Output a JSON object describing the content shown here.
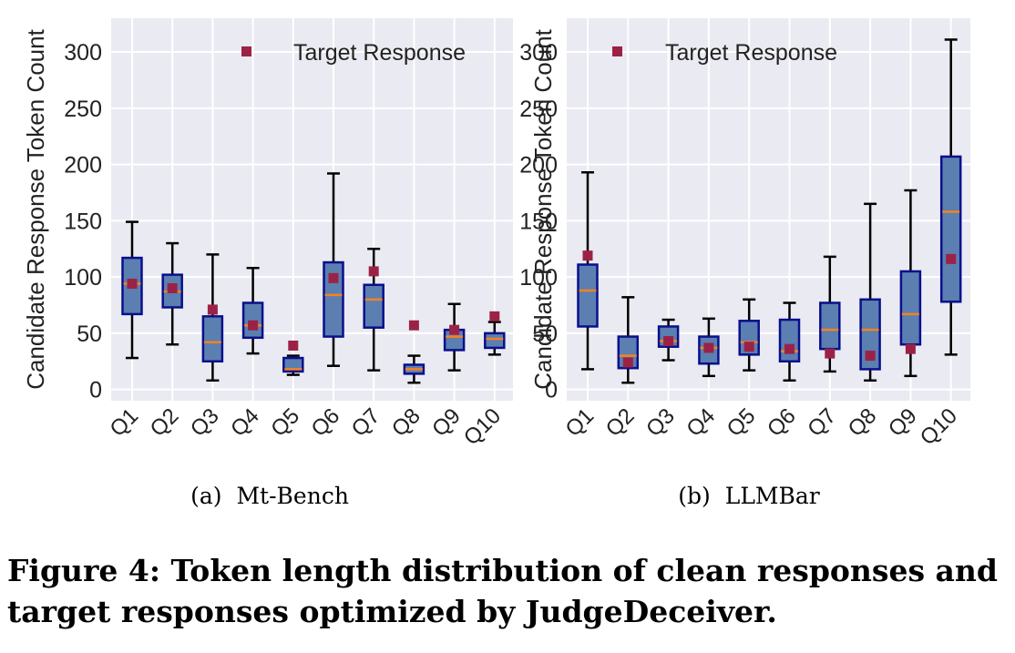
{
  "chart_data": [
    {
      "type": "box",
      "title": "",
      "ylabel": "Candidate Response Token Count",
      "xlabel": "",
      "ylim": [
        -10,
        330
      ],
      "yticks": [
        0,
        50,
        100,
        150,
        200,
        250,
        300
      ],
      "grid": true,
      "legend": {
        "label": "Target Response",
        "placement": "top"
      },
      "subcaption": {
        "tag": "(a)",
        "text": "Mt-Bench"
      },
      "categories": [
        "Q1",
        "Q2",
        "Q3",
        "Q4",
        "Q5",
        "Q6",
        "Q7",
        "Q8",
        "Q9",
        "Q10"
      ],
      "boxes": [
        {
          "whislo": 28,
          "q1": 67,
          "med": 94,
          "q3": 117,
          "whishi": 149
        },
        {
          "whislo": 40,
          "q1": 73,
          "med": 87,
          "q3": 102,
          "whishi": 130
        },
        {
          "whislo": 8,
          "q1": 25,
          "med": 42,
          "q3": 65,
          "whishi": 120
        },
        {
          "whislo": 32,
          "q1": 46,
          "med": 57,
          "q3": 77,
          "whishi": 108
        },
        {
          "whislo": 13,
          "q1": 16,
          "med": 18,
          "q3": 28,
          "whishi": 30
        },
        {
          "whislo": 21,
          "q1": 47,
          "med": 84,
          "q3": 113,
          "whishi": 192
        },
        {
          "whislo": 17,
          "q1": 55,
          "med": 80,
          "q3": 93,
          "whishi": 125
        },
        {
          "whislo": 6,
          "q1": 14,
          "med": 18,
          "q3": 22,
          "whishi": 30
        },
        {
          "whislo": 17,
          "q1": 35,
          "med": 47,
          "q3": 53,
          "whishi": 76
        },
        {
          "whislo": 31,
          "q1": 37,
          "med": 45,
          "q3": 50,
          "whishi": 60
        }
      ],
      "target": [
        94,
        90,
        71,
        57,
        39,
        99,
        105,
        57,
        53,
        65
      ]
    },
    {
      "type": "box",
      "title": "",
      "ylabel": "Candidate Response Token Count",
      "xlabel": "",
      "ylim": [
        -10,
        330
      ],
      "yticks": [
        0,
        50,
        100,
        150,
        200,
        250,
        300
      ],
      "grid": true,
      "legend": {
        "label": "Target Response",
        "placement": "top"
      },
      "subcaption": {
        "tag": "(b)",
        "text": "LLMBar"
      },
      "categories": [
        "Q1",
        "Q2",
        "Q3",
        "Q4",
        "Q5",
        "Q6",
        "Q7",
        "Q8",
        "Q9",
        "Q10"
      ],
      "boxes": [
        {
          "whislo": 18,
          "q1": 56,
          "med": 88,
          "q3": 111,
          "whishi": 193
        },
        {
          "whislo": 6,
          "q1": 19,
          "med": 30,
          "q3": 47,
          "whishi": 82
        },
        {
          "whislo": 26,
          "q1": 38,
          "med": 43,
          "q3": 56,
          "whishi": 62
        },
        {
          "whislo": 12,
          "q1": 23,
          "med": 37,
          "q3": 47,
          "whishi": 63
        },
        {
          "whislo": 17,
          "q1": 31,
          "med": 42,
          "q3": 61,
          "whishi": 80
        },
        {
          "whislo": 8,
          "q1": 25,
          "med": 34,
          "q3": 62,
          "whishi": 77
        },
        {
          "whislo": 16,
          "q1": 36,
          "med": 53,
          "q3": 77,
          "whishi": 118
        },
        {
          "whislo": 8,
          "q1": 18,
          "med": 53,
          "q3": 80,
          "whishi": 165
        },
        {
          "whislo": 12,
          "q1": 40,
          "med": 67,
          "q3": 105,
          "whishi": 177
        },
        {
          "whislo": 31,
          "q1": 78,
          "med": 158,
          "q3": 207,
          "whishi": 311
        }
      ],
      "target": [
        119,
        24,
        43,
        37,
        38,
        36,
        32,
        30,
        36,
        116
      ]
    }
  ],
  "colors": {
    "plot_bg": "#eaeaf2",
    "grid": "#ffffff",
    "box_fill": "#5b7fb1",
    "box_edge": "#0a0f8c",
    "median": "#f5821f",
    "target": "#9b2246",
    "whisker": "#000000"
  },
  "caption": "Figure 4: Token length distribution of clean responses and target responses optimized by JudgeDeceiver."
}
